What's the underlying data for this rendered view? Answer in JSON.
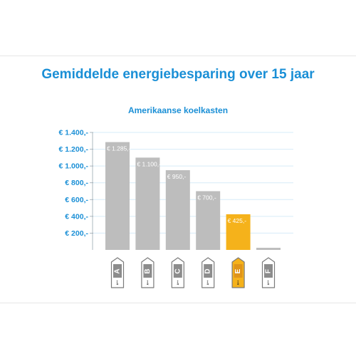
{
  "chart_data": {
    "type": "bar",
    "title": "Gemiddelde energiebesparing over 15 jaar",
    "subtitle": "Amerikaanse koelkasten",
    "categories": [
      "A",
      "B",
      "C",
      "D",
      "E",
      "F"
    ],
    "values": [
      1285,
      1100,
      950,
      700,
      425,
      25
    ],
    "data_labels": [
      "€ 1.285,-",
      "€ 1.100,-",
      "€ 950,-",
      "€ 700,-",
      "€ 425,-",
      ""
    ],
    "highlight_index": 4,
    "y_ticks": [
      200,
      400,
      600,
      800,
      1000,
      1200,
      1400
    ],
    "y_tick_labels": [
      "€ 200,-",
      "€ 400,-",
      "€ 600,-",
      "€ 800,-",
      "€ 1.000,-",
      "€ 1.200,-",
      "€ 1.400,-"
    ],
    "ylim": [
      0,
      1400
    ],
    "grid": true,
    "xlabel": "",
    "ylabel": "",
    "energy_scale_text": "A++",
    "colors": {
      "title": "#1a8fd6",
      "bar": "#bdbdbd",
      "highlight": "#f5b21b",
      "grid": "#d6ecf8",
      "label_fill": "#ffffff",
      "label_highlight_fill": "#f5b21b",
      "label_stroke": "#7a7a7a"
    }
  }
}
